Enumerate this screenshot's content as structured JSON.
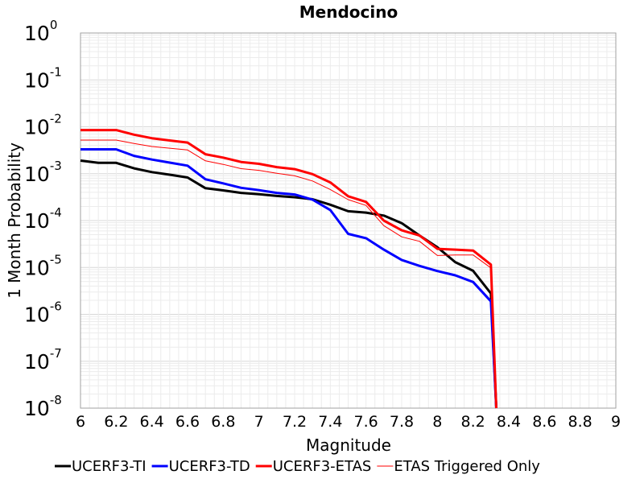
{
  "chart_data": {
    "type": "line",
    "title": "Mendocino",
    "xlabel": "Magnitude",
    "ylabel": "1 Month Probability",
    "xlim": [
      6,
      9
    ],
    "ylim": [
      1e-08,
      1
    ],
    "yscale": "log",
    "grid": true,
    "legend_position": "bottom",
    "x_ticks": [
      "6",
      "6.2",
      "6.4",
      "6.6",
      "6.8",
      "7",
      "7.2",
      "7.4",
      "7.6",
      "7.8",
      "8",
      "8.2",
      "8.4",
      "8.6",
      "8.8",
      "9"
    ],
    "y_ticks": [
      {
        "base": "10",
        "exp": "0"
      },
      {
        "base": "10",
        "exp": "-1"
      },
      {
        "base": "10",
        "exp": "-2"
      },
      {
        "base": "10",
        "exp": "-3"
      },
      {
        "base": "10",
        "exp": "-4"
      },
      {
        "base": "10",
        "exp": "-5"
      },
      {
        "base": "10",
        "exp": "-6"
      },
      {
        "base": "10",
        "exp": "-7"
      },
      {
        "base": "10",
        "exp": "-8"
      }
    ],
    "series": [
      {
        "name": "UCERF3-TI",
        "color": "#000000",
        "width": 3,
        "points": [
          [
            6.0,
            0.0019
          ],
          [
            6.1,
            0.0017
          ],
          [
            6.2,
            0.0017
          ],
          [
            6.3,
            0.0013
          ],
          [
            6.4,
            0.00108
          ],
          [
            6.5,
            0.00095
          ],
          [
            6.6,
            0.00083
          ],
          [
            6.7,
            0.00049
          ],
          [
            6.8,
            0.00044
          ],
          [
            6.9,
            0.00039
          ],
          [
            7.0,
            0.000365
          ],
          [
            7.1,
            0.000335
          ],
          [
            7.2,
            0.000315
          ],
          [
            7.3,
            0.000285
          ],
          [
            7.4,
            0.000218
          ],
          [
            7.5,
            0.000158
          ],
          [
            7.6,
            0.000148
          ],
          [
            7.7,
            0.000128
          ],
          [
            7.8,
            8.8e-05
          ],
          [
            7.9,
            4.8e-05
          ],
          [
            8.0,
            2.7e-05
          ],
          [
            8.1,
            1.3e-05
          ],
          [
            8.2,
            8.5e-06
          ],
          [
            8.3,
            2.8e-06
          ],
          [
            8.33,
            1e-08
          ]
        ]
      },
      {
        "name": "UCERF3-TD",
        "color": "#0000ff",
        "width": 3,
        "points": [
          [
            6.0,
            0.0033
          ],
          [
            6.1,
            0.0033
          ],
          [
            6.2,
            0.0033
          ],
          [
            6.3,
            0.0024
          ],
          [
            6.4,
            0.002
          ],
          [
            6.5,
            0.00172
          ],
          [
            6.6,
            0.00148
          ],
          [
            6.7,
            0.00076
          ],
          [
            6.8,
            0.00062
          ],
          [
            6.9,
            0.0005
          ],
          [
            7.0,
            0.000445
          ],
          [
            7.1,
            0.00039
          ],
          [
            7.2,
            0.00036
          ],
          [
            7.3,
            0.00028
          ],
          [
            7.4,
            0.000168
          ],
          [
            7.5,
            5.2e-05
          ],
          [
            7.6,
            4.2e-05
          ],
          [
            7.7,
            2.4e-05
          ],
          [
            7.8,
            1.45e-05
          ],
          [
            7.9,
            1.08e-05
          ],
          [
            8.0,
            8.4e-06
          ],
          [
            8.1,
            6.8e-06
          ],
          [
            8.2,
            4.9e-06
          ],
          [
            8.3,
            1.9e-06
          ],
          [
            8.33,
            1e-08
          ]
        ]
      },
      {
        "name": "UCERF3-ETAS",
        "color": "#ff0000",
        "width": 3,
        "points": [
          [
            6.0,
            0.0085
          ],
          [
            6.1,
            0.0085
          ],
          [
            6.2,
            0.0085
          ],
          [
            6.3,
            0.0068
          ],
          [
            6.4,
            0.0057
          ],
          [
            6.5,
            0.0051
          ],
          [
            6.6,
            0.0046
          ],
          [
            6.7,
            0.0026
          ],
          [
            6.8,
            0.0022
          ],
          [
            6.9,
            0.00178
          ],
          [
            7.0,
            0.00162
          ],
          [
            7.1,
            0.00138
          ],
          [
            7.2,
            0.00125
          ],
          [
            7.3,
            0.00098
          ],
          [
            7.4,
            0.00065
          ],
          [
            7.5,
            0.00033
          ],
          [
            7.6,
            0.00025
          ],
          [
            7.7,
            0.0001
          ],
          [
            7.8,
            6.2e-05
          ],
          [
            7.9,
            4.8e-05
          ],
          [
            8.0,
            2.5e-05
          ],
          [
            8.1,
            2.4e-05
          ],
          [
            8.2,
            2.3e-05
          ],
          [
            8.3,
            1.15e-05
          ],
          [
            8.33,
            1e-08
          ]
        ]
      },
      {
        "name": "ETAS Triggered Only",
        "color": "#ff0000",
        "width": 1,
        "points": [
          [
            6.0,
            0.0052
          ],
          [
            6.1,
            0.0052
          ],
          [
            6.2,
            0.0052
          ],
          [
            6.3,
            0.0044
          ],
          [
            6.4,
            0.0038
          ],
          [
            6.5,
            0.0035
          ],
          [
            6.6,
            0.0032
          ],
          [
            6.7,
            0.00188
          ],
          [
            6.8,
            0.00158
          ],
          [
            6.9,
            0.00128
          ],
          [
            7.0,
            0.00118
          ],
          [
            7.1,
            0.00102
          ],
          [
            7.2,
            0.0009
          ],
          [
            7.3,
            0.0007
          ],
          [
            7.4,
            0.00046
          ],
          [
            7.5,
            0.00028
          ],
          [
            7.6,
            0.00021
          ],
          [
            7.7,
            7.8e-05
          ],
          [
            7.8,
            4.5e-05
          ],
          [
            7.9,
            3.6e-05
          ],
          [
            8.0,
            1.8e-05
          ],
          [
            8.1,
            1.85e-05
          ],
          [
            8.2,
            1.85e-05
          ],
          [
            8.3,
            9.8e-06
          ],
          [
            8.33,
            1e-08
          ]
        ]
      }
    ]
  }
}
